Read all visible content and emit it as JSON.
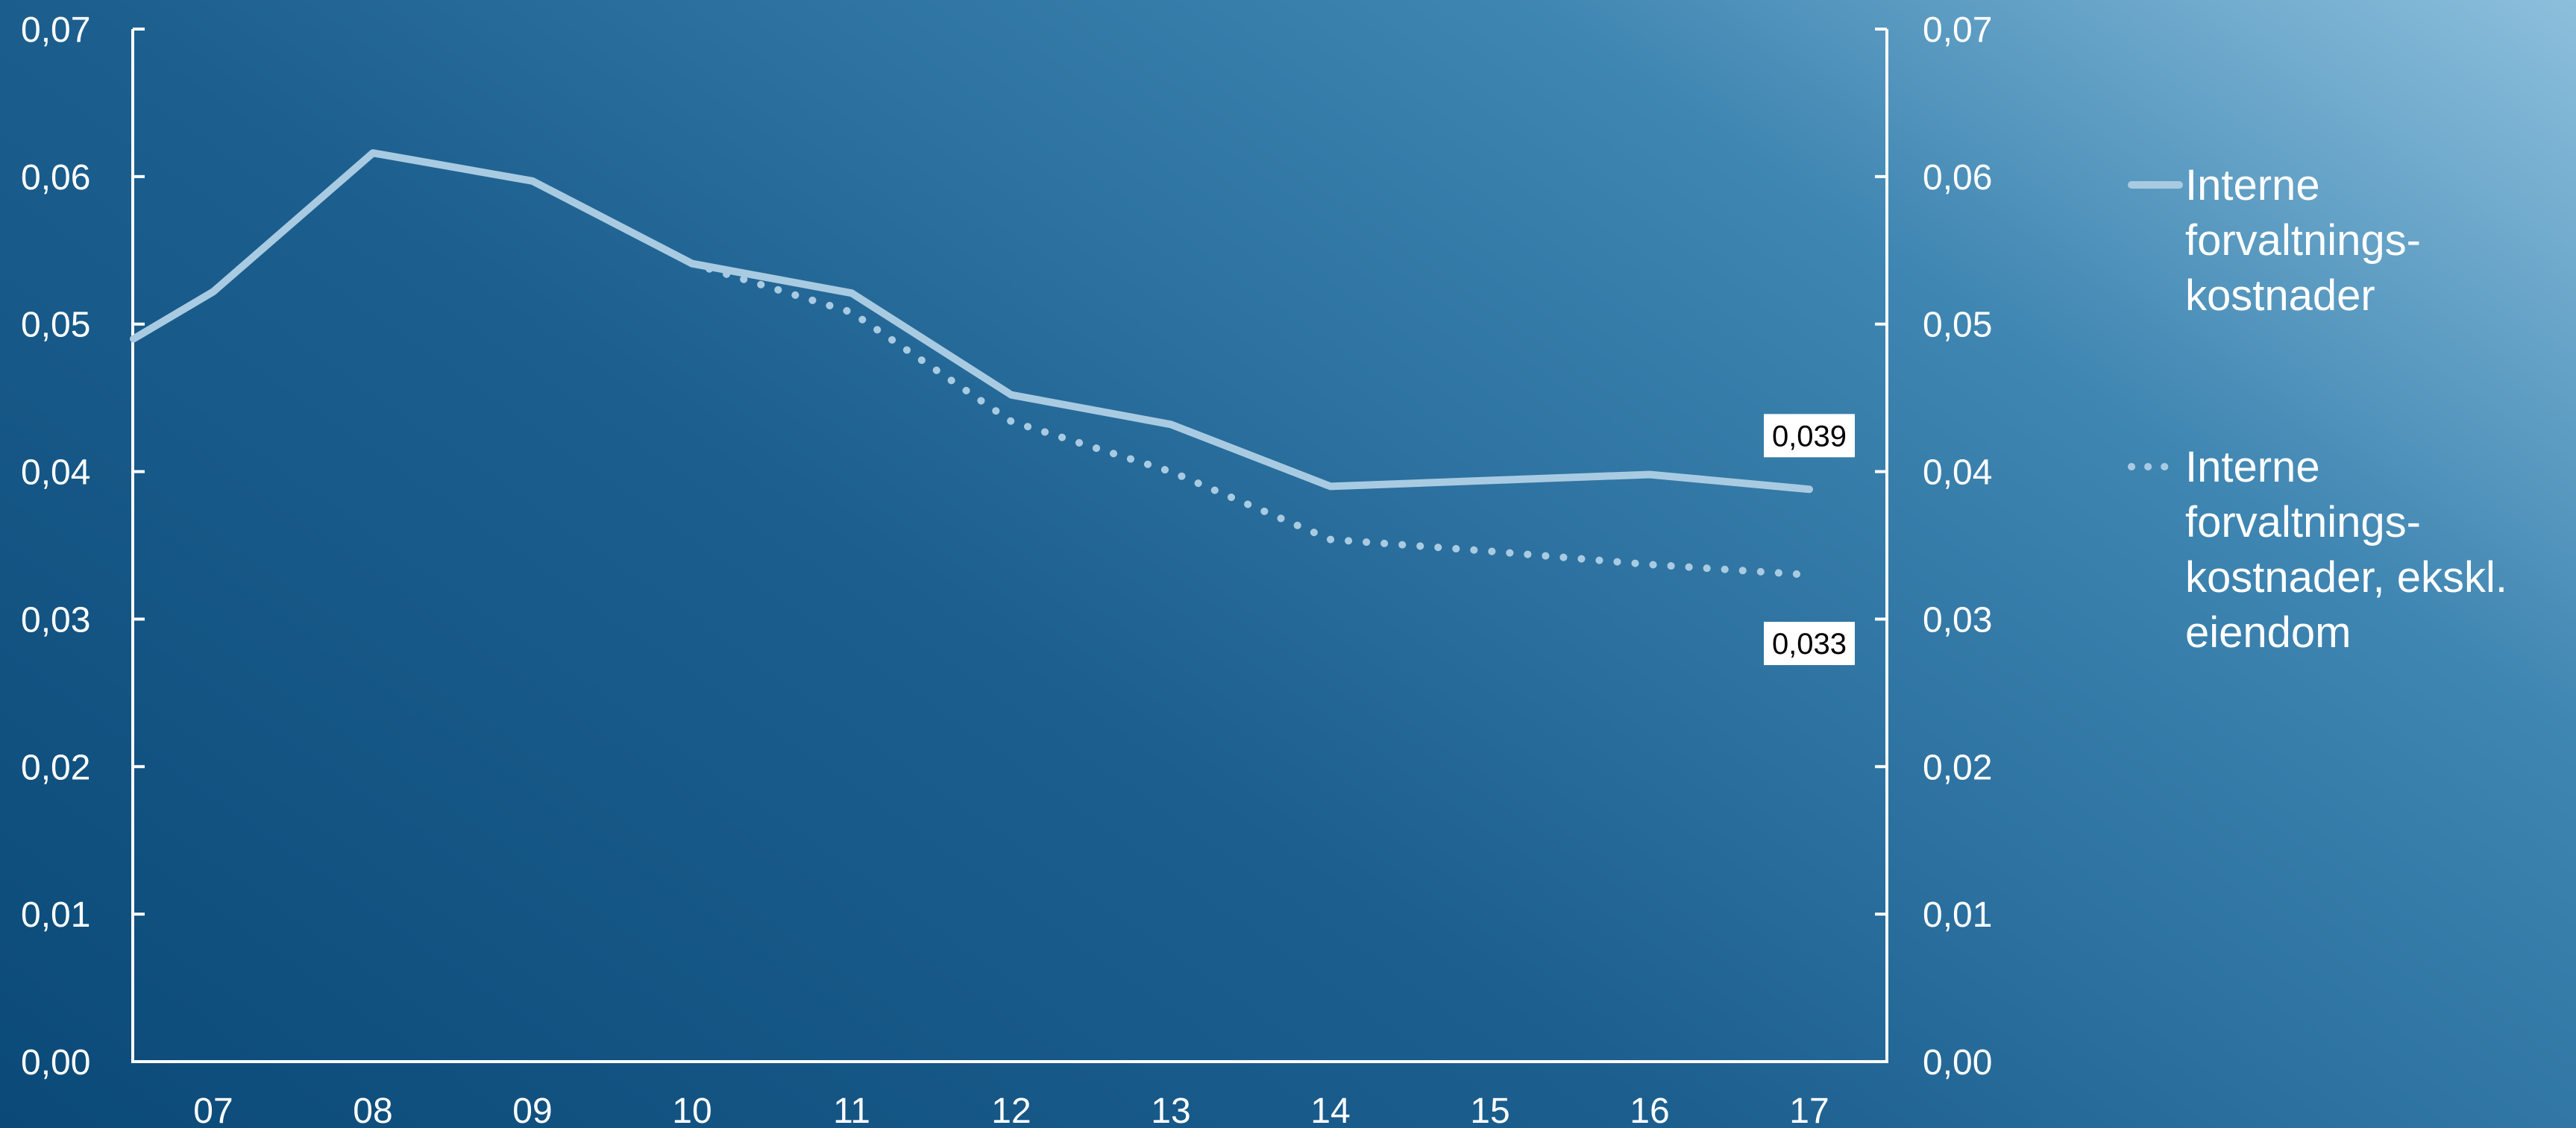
{
  "chart_data": {
    "type": "line",
    "title": "",
    "xlabel": "",
    "ylabel": "",
    "x_ticks": [
      "07",
      "08",
      "09",
      "10",
      "11",
      "12",
      "13",
      "14",
      "15",
      "16",
      "17"
    ],
    "x_range": [
      6.5,
      17.5
    ],
    "ylim": [
      0,
      0.07
    ],
    "y_ticks": [
      "0,00",
      "0,01",
      "0,02",
      "0,03",
      "0,04",
      "0,05",
      "0,06",
      "0,07"
    ],
    "y_tick_values": [
      0,
      0.01,
      0.02,
      0.03,
      0.04,
      0.05,
      0.06,
      0.07
    ],
    "secondary_y_axis": true,
    "grid": false,
    "legend_position": "right",
    "series": [
      {
        "name": "Interne forvaltnings-kostnader",
        "legend_lines": [
          "Interne",
          "forvaltnings-",
          "kostnader"
        ],
        "style": "solid",
        "color": "#a9cbe2",
        "x": [
          6.5,
          7,
          8,
          9,
          10,
          11,
          12,
          13,
          14,
          15,
          16,
          17
        ],
        "values": [
          0.049,
          0.0522,
          0.0616,
          0.0597,
          0.0541,
          0.0521,
          0.0452,
          0.0432,
          0.039,
          0.0394,
          0.0398,
          0.0388
        ]
      },
      {
        "name": "Interne forvaltnings-kostnader, ekskl. eiendom",
        "legend_lines": [
          "Interne",
          "forvaltnings-",
          "kostnader, ekskl.",
          "eiendom"
        ],
        "style": "dotted",
        "color": "#a9cbe2",
        "x": [
          10,
          11,
          12,
          13,
          14,
          15,
          16,
          17
        ],
        "values": [
          0.0541,
          0.0508,
          0.0434,
          0.04,
          0.0354,
          0.0346,
          0.0337,
          0.033
        ]
      }
    ],
    "annotations": [
      {
        "text": "0,039",
        "series": 0,
        "x": 17,
        "position": "above"
      },
      {
        "text": "0,033",
        "series": 1,
        "x": 17,
        "position": "below"
      }
    ]
  }
}
